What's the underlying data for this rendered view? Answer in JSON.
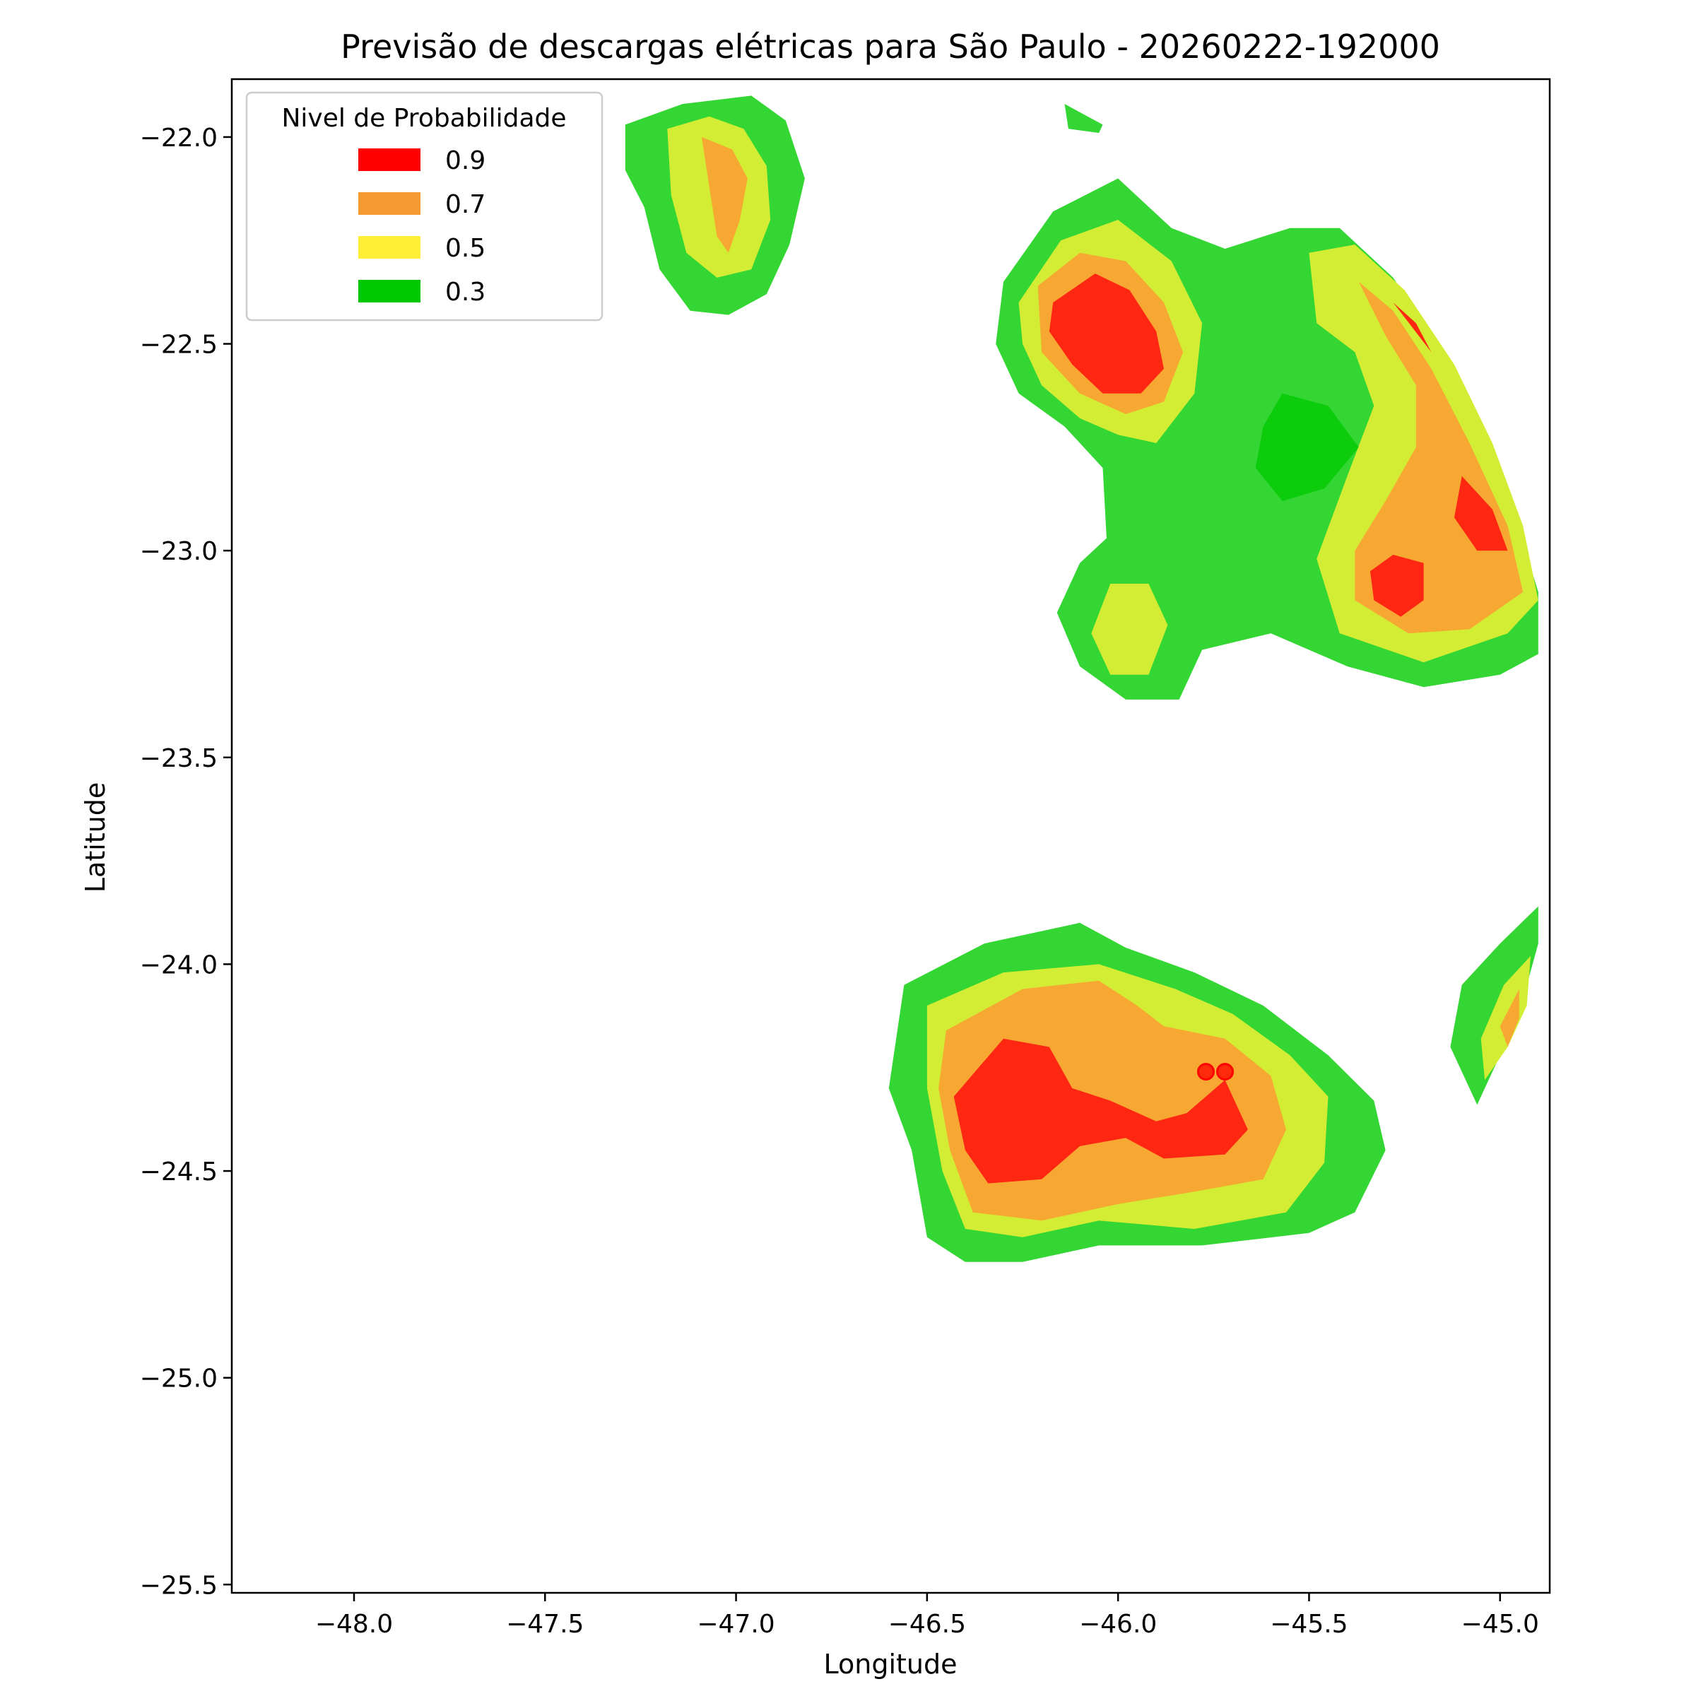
{
  "chart_data": {
    "type": "heatmap",
    "title": "Previsão de descargas elétricas para São Paulo - 20260222-192000",
    "xlabel": "Longitude",
    "ylabel": "Latitude",
    "xlim": [
      -48.32,
      -44.87
    ],
    "ylim": [
      -25.52,
      -21.86
    ],
    "xticks": [
      -48.0,
      -47.5,
      -47.0,
      -46.5,
      -46.0,
      -45.5,
      -45.0
    ],
    "xtick_labels": [
      "−48.0",
      "−47.5",
      "−47.0",
      "−46.5",
      "−46.0",
      "−45.5",
      "−45.0"
    ],
    "yticks": [
      -22.0,
      -22.5,
      -23.0,
      -23.5,
      -24.0,
      -24.5,
      -25.0,
      -25.5
    ],
    "ytick_labels": [
      "−22.0",
      "−22.5",
      "−23.0",
      "−23.5",
      "−24.0",
      "−24.5",
      "−25.0",
      "−25.5"
    ],
    "grid": false,
    "legend": {
      "title": "Nivel de Probabilidade",
      "placement": "top-left",
      "entries": [
        {
          "label": "0.9",
          "color": "#ff0000"
        },
        {
          "label": "0.7",
          "color": "#f79a32"
        },
        {
          "label": "0.5",
          "color": "#ffee33"
        },
        {
          "label": "0.3",
          "color": "#00c800"
        }
      ]
    },
    "fill_colors": {
      "0.3": "#33d633",
      "0.3_core": "#0ccc0c",
      "0.5": "#d3ed34",
      "0.7": "#f6a833",
      "0.9": "#ff2612"
    },
    "regions": [
      {
        "name": "northwest-cell",
        "level": "0.3",
        "points": [
          [
            -47.29,
            -21.97
          ],
          [
            -47.14,
            -21.92
          ],
          [
            -46.96,
            -21.9
          ],
          [
            -46.87,
            -21.96
          ],
          [
            -46.82,
            -22.1
          ],
          [
            -46.86,
            -22.26
          ],
          [
            -46.92,
            -22.38
          ],
          [
            -47.02,
            -22.43
          ],
          [
            -47.12,
            -22.42
          ],
          [
            -47.2,
            -22.32
          ],
          [
            -47.24,
            -22.17
          ],
          [
            -47.29,
            -22.08
          ]
        ]
      },
      {
        "name": "northwest-cell",
        "level": "0.5",
        "points": [
          [
            -47.18,
            -21.98
          ],
          [
            -47.07,
            -21.95
          ],
          [
            -46.98,
            -21.98
          ],
          [
            -46.92,
            -22.07
          ],
          [
            -46.91,
            -22.2
          ],
          [
            -46.96,
            -22.32
          ],
          [
            -47.05,
            -22.34
          ],
          [
            -47.13,
            -22.28
          ],
          [
            -47.17,
            -22.14
          ]
        ]
      },
      {
        "name": "northwest-cell",
        "level": "0.7",
        "points": [
          [
            -47.09,
            -22.0
          ],
          [
            -47.01,
            -22.03
          ],
          [
            -46.97,
            -22.1
          ],
          [
            -46.99,
            -22.2
          ],
          [
            -47.02,
            -22.28
          ],
          [
            -47.05,
            -22.24
          ],
          [
            -47.07,
            -22.12
          ]
        ]
      },
      {
        "name": "north-speck",
        "level": "0.3",
        "points": [
          [
            -46.14,
            -21.92
          ],
          [
            -46.04,
            -21.97
          ],
          [
            -46.05,
            -21.99
          ],
          [
            -46.13,
            -21.98
          ]
        ]
      },
      {
        "name": "northeast-complex",
        "level": "0.3",
        "points": [
          [
            -46.3,
            -22.35
          ],
          [
            -46.17,
            -22.18
          ],
          [
            -46.0,
            -22.1
          ],
          [
            -45.86,
            -22.22
          ],
          [
            -45.72,
            -22.27
          ],
          [
            -45.55,
            -22.22
          ],
          [
            -45.42,
            -22.22
          ],
          [
            -45.28,
            -22.34
          ],
          [
            -45.15,
            -22.52
          ],
          [
            -45.05,
            -22.72
          ],
          [
            -44.96,
            -22.92
          ],
          [
            -44.9,
            -23.1
          ],
          [
            -44.9,
            -23.25
          ],
          [
            -45.0,
            -23.3
          ],
          [
            -45.2,
            -23.33
          ],
          [
            -45.4,
            -23.28
          ],
          [
            -45.6,
            -23.2
          ],
          [
            -45.78,
            -23.24
          ],
          [
            -45.84,
            -23.36
          ],
          [
            -45.98,
            -23.36
          ],
          [
            -46.1,
            -23.28
          ],
          [
            -46.16,
            -23.15
          ],
          [
            -46.1,
            -23.03
          ],
          [
            -46.03,
            -22.97
          ],
          [
            -46.04,
            -22.8
          ],
          [
            -46.14,
            -22.7
          ],
          [
            -46.26,
            -22.62
          ],
          [
            -46.32,
            -22.5
          ]
        ]
      },
      {
        "name": "northeast-complex",
        "level": "0.5",
        "points": [
          [
            -46.26,
            -22.4
          ],
          [
            -46.15,
            -22.25
          ],
          [
            -46.0,
            -22.2
          ],
          [
            -45.86,
            -22.3
          ],
          [
            -45.78,
            -22.45
          ],
          [
            -45.8,
            -22.62
          ],
          [
            -45.9,
            -22.74
          ],
          [
            -46.0,
            -22.72
          ],
          [
            -46.1,
            -22.68
          ],
          [
            -46.2,
            -22.6
          ],
          [
            -46.25,
            -22.5
          ]
        ]
      },
      {
        "name": "northeast-complex",
        "level": "0.7",
        "points": [
          [
            -46.21,
            -22.36
          ],
          [
            -46.1,
            -22.28
          ],
          [
            -45.98,
            -22.3
          ],
          [
            -45.88,
            -22.4
          ],
          [
            -45.83,
            -22.52
          ],
          [
            -45.88,
            -22.64
          ],
          [
            -45.98,
            -22.67
          ],
          [
            -46.1,
            -22.62
          ],
          [
            -46.2,
            -22.52
          ]
        ]
      },
      {
        "name": "northeast-complex",
        "level": "0.9",
        "points": [
          [
            -46.17,
            -22.4
          ],
          [
            -46.06,
            -22.33
          ],
          [
            -45.97,
            -22.37
          ],
          [
            -45.9,
            -22.47
          ],
          [
            -45.88,
            -22.56
          ],
          [
            -45.94,
            -22.62
          ],
          [
            -46.04,
            -22.62
          ],
          [
            -46.12,
            -22.55
          ],
          [
            -46.18,
            -22.47
          ]
        ]
      },
      {
        "name": "northeast-complex",
        "level": "0.5",
        "points": [
          [
            -45.5,
            -22.28
          ],
          [
            -45.38,
            -22.26
          ],
          [
            -45.25,
            -22.37
          ],
          [
            -45.12,
            -22.55
          ],
          [
            -45.02,
            -22.74
          ],
          [
            -44.94,
            -22.94
          ],
          [
            -44.9,
            -23.12
          ],
          [
            -44.98,
            -23.2
          ],
          [
            -45.2,
            -23.27
          ],
          [
            -45.42,
            -23.2
          ],
          [
            -45.48,
            -23.02
          ],
          [
            -45.4,
            -22.82
          ],
          [
            -45.33,
            -22.65
          ],
          [
            -45.38,
            -22.52
          ],
          [
            -45.48,
            -22.45
          ]
        ]
      },
      {
        "name": "northeast-complex",
        "level": "0.7",
        "points": [
          [
            -45.37,
            -22.35
          ],
          [
            -45.28,
            -22.42
          ],
          [
            -45.18,
            -22.56
          ],
          [
            -45.08,
            -22.74
          ],
          [
            -44.98,
            -22.94
          ],
          [
            -44.94,
            -23.1
          ],
          [
            -45.08,
            -23.19
          ],
          [
            -45.24,
            -23.2
          ],
          [
            -45.38,
            -23.12
          ],
          [
            -45.38,
            -23.0
          ],
          [
            -45.3,
            -22.88
          ],
          [
            -45.22,
            -22.75
          ],
          [
            -45.22,
            -22.6
          ],
          [
            -45.3,
            -22.48
          ]
        ]
      },
      {
        "name": "northeast-complex",
        "level": "0.9",
        "points": [
          [
            -45.28,
            -22.4
          ],
          [
            -45.22,
            -22.45
          ],
          [
            -45.18,
            -22.52
          ]
        ]
      },
      {
        "name": "northeast-complex",
        "level": "0.9",
        "points": [
          [
            -45.1,
            -22.82
          ],
          [
            -45.02,
            -22.9
          ],
          [
            -44.98,
            -23.0
          ],
          [
            -45.06,
            -23.0
          ],
          [
            -45.12,
            -22.92
          ]
        ]
      },
      {
        "name": "northeast-complex",
        "level": "0.9",
        "points": [
          [
            -45.28,
            -23.01
          ],
          [
            -45.2,
            -23.03
          ],
          [
            -45.2,
            -23.12
          ],
          [
            -45.26,
            -23.16
          ],
          [
            -45.33,
            -23.12
          ],
          [
            -45.34,
            -23.05
          ]
        ]
      },
      {
        "name": "northeast-complex",
        "level": "0.5",
        "points": [
          [
            -46.02,
            -23.08
          ],
          [
            -45.92,
            -23.08
          ],
          [
            -45.87,
            -23.18
          ],
          [
            -45.92,
            -23.3
          ],
          [
            -46.02,
            -23.3
          ],
          [
            -46.07,
            -23.2
          ]
        ]
      },
      {
        "name": "northeast-complex",
        "level": "0.3_core",
        "points": [
          [
            -45.57,
            -22.62
          ],
          [
            -45.45,
            -22.65
          ],
          [
            -45.37,
            -22.75
          ],
          [
            -45.46,
            -22.85
          ],
          [
            -45.57,
            -22.88
          ],
          [
            -45.64,
            -22.8
          ],
          [
            -45.62,
            -22.7
          ]
        ]
      },
      {
        "name": "south-cell",
        "level": "0.3",
        "points": [
          [
            -46.56,
            -24.05
          ],
          [
            -46.35,
            -23.95
          ],
          [
            -46.1,
            -23.9
          ],
          [
            -45.98,
            -23.96
          ],
          [
            -45.8,
            -24.02
          ],
          [
            -45.62,
            -24.1
          ],
          [
            -45.45,
            -24.22
          ],
          [
            -45.33,
            -24.33
          ],
          [
            -45.3,
            -24.45
          ],
          [
            -45.38,
            -24.6
          ],
          [
            -45.5,
            -24.65
          ],
          [
            -45.78,
            -24.68
          ],
          [
            -46.05,
            -24.68
          ],
          [
            -46.25,
            -24.72
          ],
          [
            -46.4,
            -24.72
          ],
          [
            -46.5,
            -24.66
          ],
          [
            -46.54,
            -24.45
          ],
          [
            -46.6,
            -24.3
          ]
        ]
      },
      {
        "name": "south-cell",
        "level": "0.5",
        "points": [
          [
            -46.5,
            -24.1
          ],
          [
            -46.3,
            -24.02
          ],
          [
            -46.05,
            -24.0
          ],
          [
            -45.85,
            -24.06
          ],
          [
            -45.7,
            -24.12
          ],
          [
            -45.55,
            -24.22
          ],
          [
            -45.45,
            -24.32
          ],
          [
            -45.46,
            -24.48
          ],
          [
            -45.56,
            -24.6
          ],
          [
            -45.8,
            -24.64
          ],
          [
            -46.05,
            -24.62
          ],
          [
            -46.25,
            -24.66
          ],
          [
            -46.4,
            -24.64
          ],
          [
            -46.46,
            -24.5
          ],
          [
            -46.5,
            -24.3
          ]
        ]
      },
      {
        "name": "south-cell",
        "level": "0.7",
        "points": [
          [
            -46.45,
            -24.16
          ],
          [
            -46.25,
            -24.06
          ],
          [
            -46.05,
            -24.04
          ],
          [
            -45.95,
            -24.1
          ],
          [
            -45.88,
            -24.15
          ],
          [
            -45.72,
            -24.18
          ],
          [
            -45.6,
            -24.27
          ],
          [
            -45.56,
            -24.4
          ],
          [
            -45.62,
            -24.52
          ],
          [
            -45.8,
            -24.55
          ],
          [
            -46.0,
            -24.58
          ],
          [
            -46.2,
            -24.62
          ],
          [
            -46.38,
            -24.6
          ],
          [
            -46.44,
            -24.45
          ],
          [
            -46.47,
            -24.3
          ]
        ]
      },
      {
        "name": "south-cell",
        "level": "0.9",
        "points": [
          [
            -46.3,
            -24.18
          ],
          [
            -46.18,
            -24.2
          ],
          [
            -46.12,
            -24.3
          ],
          [
            -46.02,
            -24.33
          ],
          [
            -45.9,
            -24.38
          ],
          [
            -45.82,
            -24.36
          ],
          [
            -45.72,
            -24.28
          ],
          [
            -45.66,
            -24.4
          ],
          [
            -45.72,
            -24.46
          ],
          [
            -45.88,
            -24.47
          ],
          [
            -45.98,
            -24.42
          ],
          [
            -46.1,
            -24.44
          ],
          [
            -46.2,
            -24.52
          ],
          [
            -46.34,
            -24.53
          ],
          [
            -46.4,
            -24.45
          ],
          [
            -46.43,
            -24.32
          ]
        ]
      },
      {
        "name": "east-edge-sliver",
        "level": "0.3",
        "points": [
          [
            -44.9,
            -23.86
          ],
          [
            -45.0,
            -23.95
          ],
          [
            -45.1,
            -24.05
          ],
          [
            -45.13,
            -24.2
          ],
          [
            -45.06,
            -24.34
          ],
          [
            -44.99,
            -24.2
          ],
          [
            -44.93,
            -24.05
          ],
          [
            -44.9,
            -23.95
          ]
        ]
      },
      {
        "name": "east-edge-sliver",
        "level": "0.5",
        "points": [
          [
            -44.92,
            -23.98
          ],
          [
            -44.99,
            -24.05
          ],
          [
            -45.05,
            -24.18
          ],
          [
            -45.04,
            -24.28
          ],
          [
            -44.98,
            -24.2
          ],
          [
            -44.93,
            -24.1
          ]
        ]
      },
      {
        "name": "east-edge-sliver",
        "level": "0.7",
        "points": [
          [
            -44.95,
            -24.06
          ],
          [
            -45.0,
            -24.15
          ],
          [
            -44.98,
            -24.2
          ],
          [
            -44.95,
            -24.13
          ]
        ]
      }
    ],
    "markers": [
      {
        "x": -45.77,
        "y": -24.26,
        "color": "#ff0000"
      },
      {
        "x": -45.72,
        "y": -24.26,
        "color": "#ff0000"
      }
    ]
  }
}
